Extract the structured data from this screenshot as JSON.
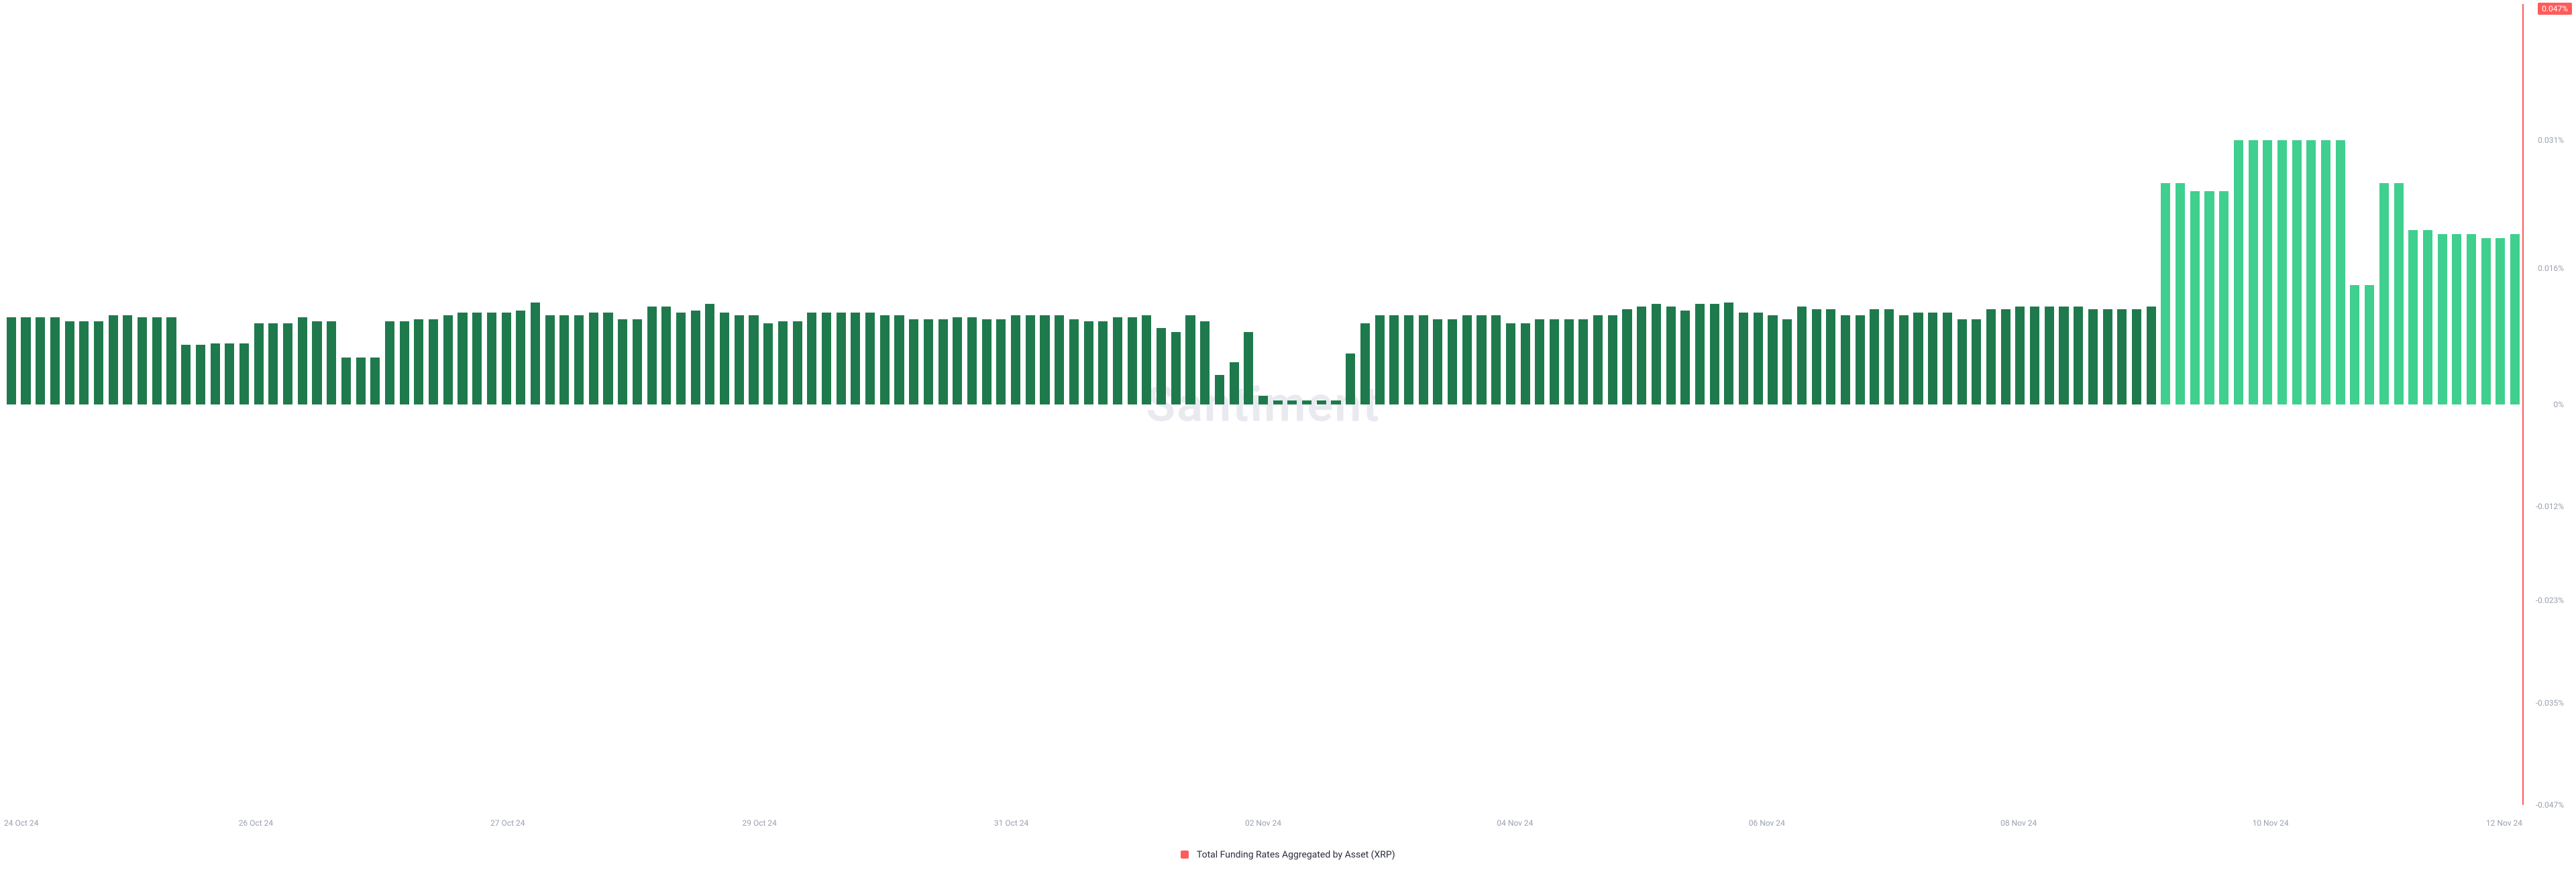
{
  "chart": {
    "type": "bar",
    "watermark": "Santiment",
    "watermark_color": "#e8eaf0",
    "background_color": "#ffffff",
    "badge_value": "0.047%",
    "badge_bg": "#ff5b5b",
    "badge_fg": "#ffffff",
    "right_line_color": "#ff5b5b",
    "bar_color_dark": "#1e7a4c",
    "bar_color_light": "#3fcf8e",
    "bar_width_ratio": 0.65,
    "y_axis": {
      "min": -0.047,
      "max": 0.047,
      "zero": 0,
      "ticks": [
        0.031,
        0.016,
        0,
        -0.012,
        -0.023,
        -0.035,
        -0.047
      ],
      "tick_labels": [
        "0.031%",
        "0.016%",
        "0%",
        "-0.012%",
        "-0.023%",
        "-0.035%",
        "-0.047%"
      ],
      "tick_color": "#9aa0b0",
      "tick_fontsize": 12
    },
    "x_axis": {
      "labels": [
        "24 Oct 24",
        "26 Oct 24",
        "27 Oct 24",
        "29 Oct 24",
        "31 Oct 24",
        "02 Nov 24",
        "04 Nov 24",
        "06 Nov 24",
        "08 Nov 24",
        "10 Nov 24",
        "12 Nov 24"
      ],
      "positions_pct": [
        0,
        10,
        20,
        30,
        40,
        50,
        60,
        70,
        80,
        90,
        100
      ],
      "tick_color": "#9aa0b0",
      "tick_fontsize": 12
    },
    "legend": {
      "swatch_color": "#ff5b5b",
      "text": "Total Funding Rates Aggregated by Asset (XRP)",
      "text_color": "#2a2e3a",
      "fontsize": 14
    },
    "values": [
      0.0102,
      0.0102,
      0.0102,
      0.0102,
      0.0098,
      0.0098,
      0.0098,
      0.0105,
      0.0105,
      0.0102,
      0.0102,
      0.0102,
      0.007,
      0.007,
      0.0072,
      0.0072,
      0.0072,
      0.0095,
      0.0095,
      0.0095,
      0.0102,
      0.0098,
      0.0098,
      0.0055,
      0.0055,
      0.0055,
      0.0098,
      0.0098,
      0.01,
      0.01,
      0.0105,
      0.0108,
      0.0108,
      0.0108,
      0.0108,
      0.011,
      0.012,
      0.0105,
      0.0105,
      0.0105,
      0.0108,
      0.0108,
      0.01,
      0.01,
      0.0115,
      0.0115,
      0.0108,
      0.011,
      0.0118,
      0.0108,
      0.0105,
      0.0105,
      0.0095,
      0.0098,
      0.0098,
      0.0108,
      0.0108,
      0.0108,
      0.0108,
      0.0108,
      0.0105,
      0.0105,
      0.01,
      0.01,
      0.01,
      0.0102,
      0.0102,
      0.01,
      0.01,
      0.0105,
      0.0105,
      0.0105,
      0.0105,
      0.01,
      0.0098,
      0.0098,
      0.0102,
      0.0102,
      0.0105,
      0.009,
      0.0085,
      0.0105,
      0.0098,
      0.0035,
      0.005,
      0.0085,
      0.001,
      0.0005,
      0.0005,
      0.0005,
      0.0005,
      0.0005,
      0.006,
      0.0095,
      0.0105,
      0.0105,
      0.0105,
      0.0105,
      0.01,
      0.01,
      0.0105,
      0.0105,
      0.0105,
      0.0095,
      0.0095,
      0.01,
      0.01,
      0.01,
      0.01,
      0.0105,
      0.0105,
      0.0112,
      0.0115,
      0.0118,
      0.0115,
      0.011,
      0.0118,
      0.0118,
      0.012,
      0.0108,
      0.0108,
      0.0105,
      0.01,
      0.0115,
      0.0112,
      0.0112,
      0.0105,
      0.0105,
      0.0112,
      0.0112,
      0.0105,
      0.0108,
      0.0108,
      0.0108,
      0.01,
      0.01,
      0.0112,
      0.0112,
      0.0115,
      0.0115,
      0.0115,
      0.0115,
      0.0115,
      0.0112,
      0.0112,
      0.0112,
      0.0112,
      0.0115,
      0.026,
      0.026,
      0.025,
      0.025,
      0.025,
      0.031,
      0.031,
      0.031,
      0.031,
      0.031,
      0.031,
      0.031,
      0.031,
      0.014,
      0.014,
      0.026,
      0.026,
      0.0205,
      0.0205,
      0.02,
      0.02,
      0.02,
      0.0195,
      0.0195,
      0.02
    ],
    "light_start_index": 148
  }
}
